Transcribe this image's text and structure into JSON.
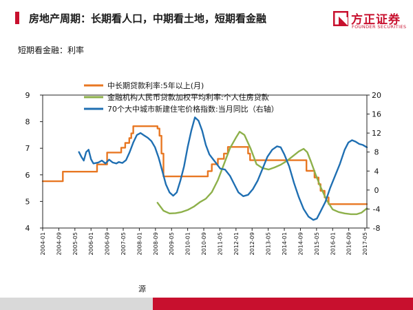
{
  "header": {
    "title": "房地产周期：长期看人口，中期看土地，短期看金融",
    "logo_cn": "方正证券",
    "logo_en": "FOUNDER SECURITIES",
    "accent": "#c8102e"
  },
  "subtitle": "短期看金融：利率",
  "footer": {
    "source": "源"
  },
  "chart_data": {
    "type": "line",
    "title": "",
    "x_ticks": [
      "2004-01",
      "2004-09",
      "2005-05",
      "2006-01",
      "2006-09",
      "2007-05",
      "2008-01",
      "2008-09",
      "2009-05",
      "2010-01",
      "2010-09",
      "2011-05",
      "2012-01",
      "2012-09",
      "2013-05",
      "2014-01",
      "2014-09",
      "2015-05",
      "2016-01",
      "2016-09",
      "2017-05"
    ],
    "x_range": [
      2004.0,
      2017.4167
    ],
    "ylim_left": [
      4,
      9
    ],
    "yticks_left": [
      4,
      5,
      6,
      7,
      8,
      9
    ],
    "ylim_right": [
      -8,
      20
    ],
    "yticks_right": [
      -8,
      -4,
      0,
      4,
      8,
      12,
      16,
      20
    ],
    "legend_position": "top-center",
    "series": [
      {
        "name": "中长期贷款利率:5年以上(月)",
        "color": "#e87722",
        "axis": "left",
        "step": true,
        "points": [
          [
            2004.0,
            5.76
          ],
          [
            2004.8333,
            5.76
          ],
          [
            2004.8333,
            6.12
          ],
          [
            2006.25,
            6.12
          ],
          [
            2006.25,
            6.39
          ],
          [
            2006.6667,
            6.39
          ],
          [
            2006.6667,
            6.84
          ],
          [
            2007.25,
            6.84
          ],
          [
            2007.25,
            7.02
          ],
          [
            2007.4167,
            7.02
          ],
          [
            2007.4167,
            7.2
          ],
          [
            2007.5833,
            7.2
          ],
          [
            2007.5833,
            7.38
          ],
          [
            2007.6667,
            7.38
          ],
          [
            2007.6667,
            7.56
          ],
          [
            2007.75,
            7.56
          ],
          [
            2007.75,
            7.83
          ],
          [
            2008.75,
            7.83
          ],
          [
            2008.75,
            7.74
          ],
          [
            2008.8333,
            7.74
          ],
          [
            2008.8333,
            7.47
          ],
          [
            2008.9167,
            7.47
          ],
          [
            2008.9167,
            6.8
          ],
          [
            2009.0,
            6.8
          ],
          [
            2009.0,
            5.94
          ],
          [
            2010.8333,
            5.94
          ],
          [
            2010.8333,
            6.14
          ],
          [
            2011.0,
            6.14
          ],
          [
            2011.0,
            6.4
          ],
          [
            2011.25,
            6.4
          ],
          [
            2011.25,
            6.6
          ],
          [
            2011.5,
            6.6
          ],
          [
            2011.5,
            6.8
          ],
          [
            2011.6667,
            6.8
          ],
          [
            2011.6667,
            7.05
          ],
          [
            2012.5,
            7.05
          ],
          [
            2012.5,
            6.8
          ],
          [
            2012.5833,
            6.8
          ],
          [
            2012.5833,
            6.55
          ],
          [
            2014.9167,
            6.55
          ],
          [
            2014.9167,
            6.15
          ],
          [
            2015.25,
            6.15
          ],
          [
            2015.25,
            5.9
          ],
          [
            2015.4167,
            5.9
          ],
          [
            2015.4167,
            5.65
          ],
          [
            2015.5,
            5.65
          ],
          [
            2015.5,
            5.4
          ],
          [
            2015.6667,
            5.4
          ],
          [
            2015.6667,
            5.15
          ],
          [
            2015.8333,
            5.15
          ],
          [
            2015.8333,
            4.9
          ],
          [
            2017.4167,
            4.9
          ]
        ]
      },
      {
        "name": "金融机构人民币贷款加权平均利率:个人住房贷款",
        "color": "#8db04a",
        "axis": "left",
        "points": [
          [
            2008.75,
            4.95
          ],
          [
            2009.0,
            4.65
          ],
          [
            2009.25,
            4.55
          ],
          [
            2009.5,
            4.56
          ],
          [
            2009.75,
            4.6
          ],
          [
            2010.0,
            4.68
          ],
          [
            2010.25,
            4.8
          ],
          [
            2010.5,
            4.97
          ],
          [
            2010.75,
            5.1
          ],
          [
            2011.0,
            5.35
          ],
          [
            2011.25,
            5.8
          ],
          [
            2011.5,
            6.4
          ],
          [
            2011.75,
            7.0
          ],
          [
            2012.0,
            7.4
          ],
          [
            2012.15,
            7.62
          ],
          [
            2012.35,
            7.5
          ],
          [
            2012.6,
            7.0
          ],
          [
            2012.85,
            6.4
          ],
          [
            2013.1,
            6.25
          ],
          [
            2013.35,
            6.2
          ],
          [
            2013.6,
            6.28
          ],
          [
            2013.85,
            6.38
          ],
          [
            2014.1,
            6.52
          ],
          [
            2014.35,
            6.7
          ],
          [
            2014.6,
            6.88
          ],
          [
            2014.8,
            6.98
          ],
          [
            2014.95,
            6.85
          ],
          [
            2015.1,
            6.5
          ],
          [
            2015.3,
            6.0
          ],
          [
            2015.5,
            5.55
          ],
          [
            2015.75,
            5.05
          ],
          [
            2016.0,
            4.7
          ],
          [
            2016.25,
            4.6
          ],
          [
            2016.5,
            4.55
          ],
          [
            2016.75,
            4.52
          ],
          [
            2017.0,
            4.52
          ],
          [
            2017.2,
            4.58
          ],
          [
            2017.4167,
            4.74
          ]
        ]
      },
      {
        "name": "70个大中城市新建住宅价格指数:当月同比（右轴）",
        "color": "#1f6fb2",
        "axis": "right",
        "points": [
          [
            2005.5,
            8.0
          ],
          [
            2005.6,
            7.0
          ],
          [
            2005.7,
            6.2
          ],
          [
            2005.8,
            8.0
          ],
          [
            2005.9,
            8.5
          ],
          [
            2006.0,
            6.5
          ],
          [
            2006.1,
            5.6
          ],
          [
            2006.3,
            5.8
          ],
          [
            2006.45,
            6.2
          ],
          [
            2006.6,
            5.6
          ],
          [
            2006.75,
            6.4
          ],
          [
            2006.9,
            5.8
          ],
          [
            2007.05,
            5.6
          ],
          [
            2007.15,
            5.9
          ],
          [
            2007.3,
            5.7
          ],
          [
            2007.45,
            6.3
          ],
          [
            2007.6,
            8.0
          ],
          [
            2007.75,
            10.0
          ],
          [
            2007.9,
            11.6
          ],
          [
            2008.05,
            12.0
          ],
          [
            2008.2,
            11.5
          ],
          [
            2008.35,
            11.0
          ],
          [
            2008.5,
            10.3
          ],
          [
            2008.65,
            9.0
          ],
          [
            2008.8,
            6.8
          ],
          [
            2008.95,
            4.0
          ],
          [
            2009.1,
            1.2
          ],
          [
            2009.25,
            -0.5
          ],
          [
            2009.4,
            -1.2
          ],
          [
            2009.55,
            -0.5
          ],
          [
            2009.7,
            2.0
          ],
          [
            2009.85,
            5.0
          ],
          [
            2010.0,
            9.0
          ],
          [
            2010.15,
            12.5
          ],
          [
            2010.3,
            15.3
          ],
          [
            2010.45,
            14.6
          ],
          [
            2010.6,
            12.5
          ],
          [
            2010.75,
            9.5
          ],
          [
            2010.9,
            7.5
          ],
          [
            2011.05,
            6.5
          ],
          [
            2011.2,
            5.5
          ],
          [
            2011.35,
            4.5
          ],
          [
            2011.55,
            4.3
          ],
          [
            2011.75,
            3.0
          ],
          [
            2011.95,
            1.0
          ],
          [
            2012.1,
            -0.5
          ],
          [
            2012.3,
            -1.3
          ],
          [
            2012.5,
            -1.0
          ],
          [
            2012.7,
            0.2
          ],
          [
            2012.9,
            2.0
          ],
          [
            2013.1,
            4.5
          ],
          [
            2013.3,
            7.0
          ],
          [
            2013.5,
            8.5
          ],
          [
            2013.7,
            9.2
          ],
          [
            2013.85,
            9.0
          ],
          [
            2014.0,
            7.5
          ],
          [
            2014.2,
            5.0
          ],
          [
            2014.4,
            1.5
          ],
          [
            2014.6,
            -1.5
          ],
          [
            2014.8,
            -4.0
          ],
          [
            2015.0,
            -5.6
          ],
          [
            2015.2,
            -6.3
          ],
          [
            2015.35,
            -6.0
          ],
          [
            2015.5,
            -4.5
          ],
          [
            2015.7,
            -2.5
          ],
          [
            2015.9,
            0.5
          ],
          [
            2016.1,
            3.0
          ],
          [
            2016.3,
            5.5
          ],
          [
            2016.5,
            8.5
          ],
          [
            2016.65,
            10.0
          ],
          [
            2016.8,
            10.5
          ],
          [
            2016.95,
            10.2
          ],
          [
            2017.1,
            9.7
          ],
          [
            2017.25,
            9.5
          ],
          [
            2017.4167,
            9.0
          ]
        ]
      }
    ]
  }
}
